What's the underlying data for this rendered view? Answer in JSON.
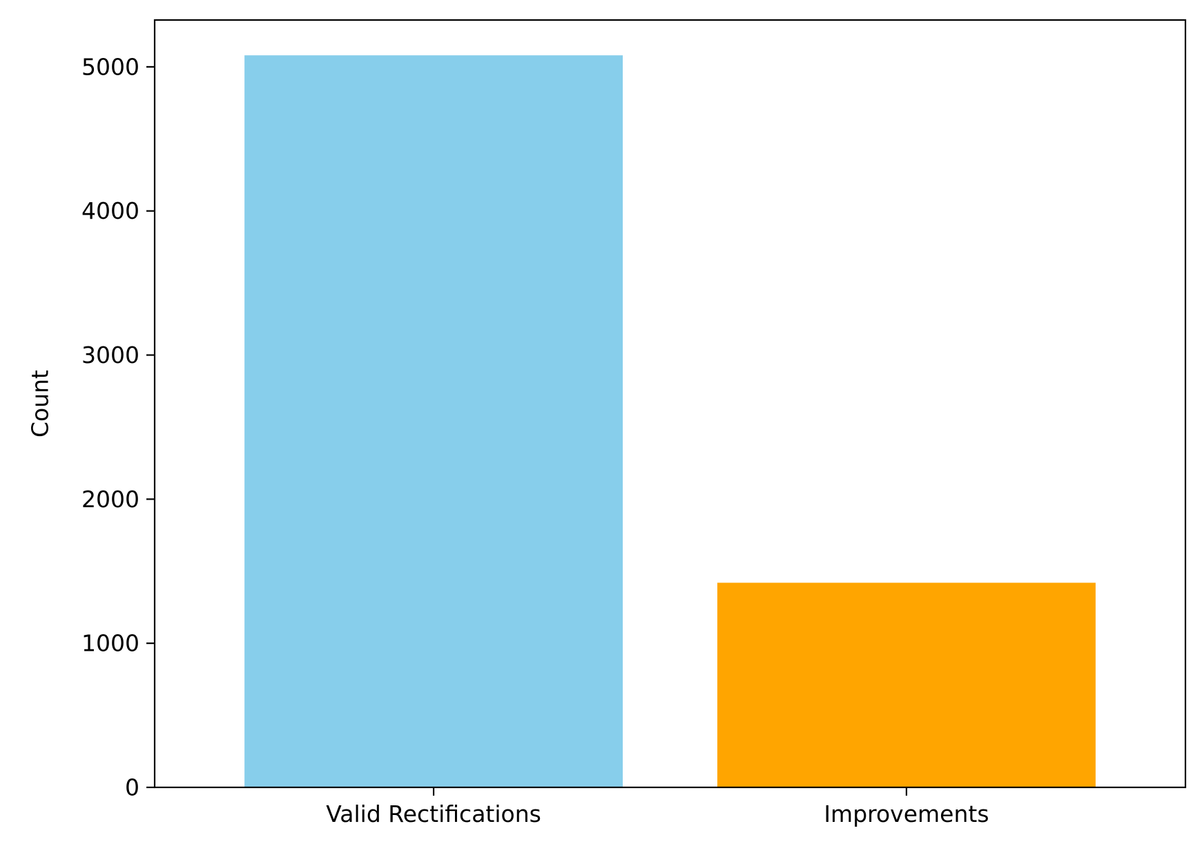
{
  "chart_data": {
    "type": "bar",
    "title": "",
    "xlabel": "",
    "ylabel": "Count",
    "categories": [
      "Valid Rectifications",
      "Improvements"
    ],
    "values": [
      5080,
      1420
    ],
    "colors": [
      "#87ceeb",
      "#ffa500"
    ],
    "ylim": [
      0,
      5325
    ],
    "yticks": [
      0,
      1000,
      2000,
      3000,
      4000,
      5000
    ],
    "ytick_labels": [
      "0",
      "1000",
      "2000",
      "3000",
      "4000",
      "5000"
    ],
    "grid": false,
    "legend": "none"
  }
}
